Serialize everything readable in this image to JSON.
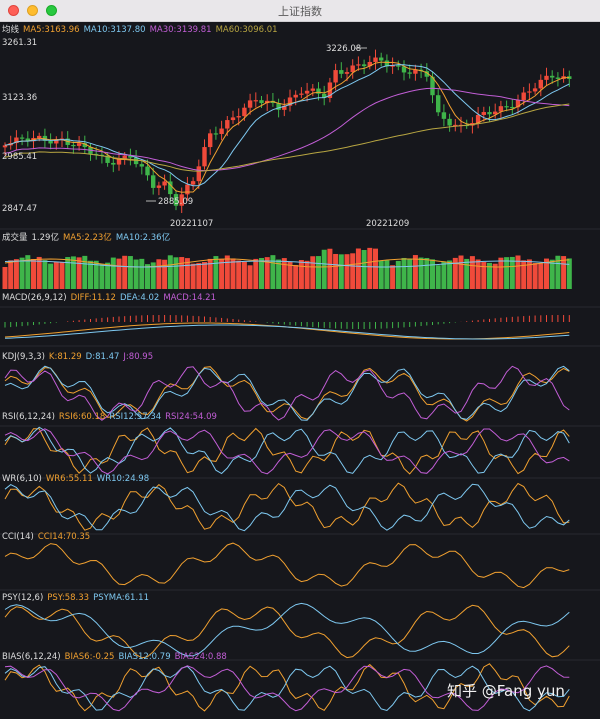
{
  "window": {
    "title": "上证指数"
  },
  "colors": {
    "up": "#f04a3a",
    "down": "#3fb54a",
    "ma5": "#f0a030",
    "ma10": "#7ec8f0",
    "ma30": "#c25ed6",
    "ma60": "#b8a642",
    "text": "#dddddd",
    "bg": "#16171c",
    "sep": "#3a3b42"
  },
  "panels": {
    "main": {
      "title": "均线",
      "legend": [
        {
          "text": "MA5:3163.96",
          "color": "#f0a030"
        },
        {
          "text": "MA10:3137.80",
          "color": "#7ec8f0"
        },
        {
          "text": "MA30:3139.81",
          "color": "#c25ed6"
        },
        {
          "text": "MA60:3096.01",
          "color": "#b8a642"
        }
      ],
      "y_labels": [
        "3261.31",
        "3123.36",
        "2985.41",
        "2847.47"
      ],
      "high_mark": "3226.08",
      "low_mark": "2885.09",
      "dates": [
        "20221107",
        "20221209"
      ]
    },
    "volume": {
      "title": "成交量",
      "legend": [
        {
          "text": "1.29亿",
          "color": "#dddddd"
        },
        {
          "text": "MA5:2.23亿",
          "color": "#f0a030"
        },
        {
          "text": "MA10:2.36亿",
          "color": "#7ec8f0"
        }
      ]
    },
    "macd": {
      "title": "MACD(26,9,12)",
      "legend": [
        {
          "text": "DIFF:11.12",
          "color": "#f0a030"
        },
        {
          "text": "DEA:4.02",
          "color": "#7ec8f0"
        },
        {
          "text": "MACD:14.21",
          "color": "#c25ed6"
        }
      ]
    },
    "kdj": {
      "title": "KDJ(9,3,3)",
      "legend": [
        {
          "text": "K:81.29",
          "color": "#f0a030"
        },
        {
          "text": "D:81.47",
          "color": "#7ec8f0"
        },
        {
          "text": "J:80.95",
          "color": "#c25ed6"
        }
      ]
    },
    "rsi": {
      "title": "RSI(6,12,24)",
      "legend": [
        {
          "text": "RSI6:60.18",
          "color": "#f0a030"
        },
        {
          "text": "RSI12:57.34",
          "color": "#7ec8f0"
        },
        {
          "text": "RSI24:54.09",
          "color": "#c25ed6"
        }
      ]
    },
    "wr": {
      "title": "WR(6,10)",
      "legend": [
        {
          "text": "WR6:55.11",
          "color": "#f0a030"
        },
        {
          "text": "WR10:24.98",
          "color": "#7ec8f0"
        }
      ]
    },
    "cci": {
      "title": "CCI(14)",
      "legend": [
        {
          "text": "CCI14:70.35",
          "color": "#f0a030"
        }
      ]
    },
    "psy": {
      "title": "PSY(12,6)",
      "legend": [
        {
          "text": "PSY:58.33",
          "color": "#f0a030"
        },
        {
          "text": "PSYMA:61.11",
          "color": "#7ec8f0"
        }
      ]
    },
    "bias": {
      "title": "BIAS(6,12,24)",
      "legend": [
        {
          "text": "BIAS6:-0.25",
          "color": "#f0a030"
        },
        {
          "text": "BIAS12:0.79",
          "color": "#7ec8f0"
        },
        {
          "text": "BIAS24:0.88",
          "color": "#c25ed6"
        }
      ]
    }
  },
  "watermark": "知乎 @Fang yun"
}
